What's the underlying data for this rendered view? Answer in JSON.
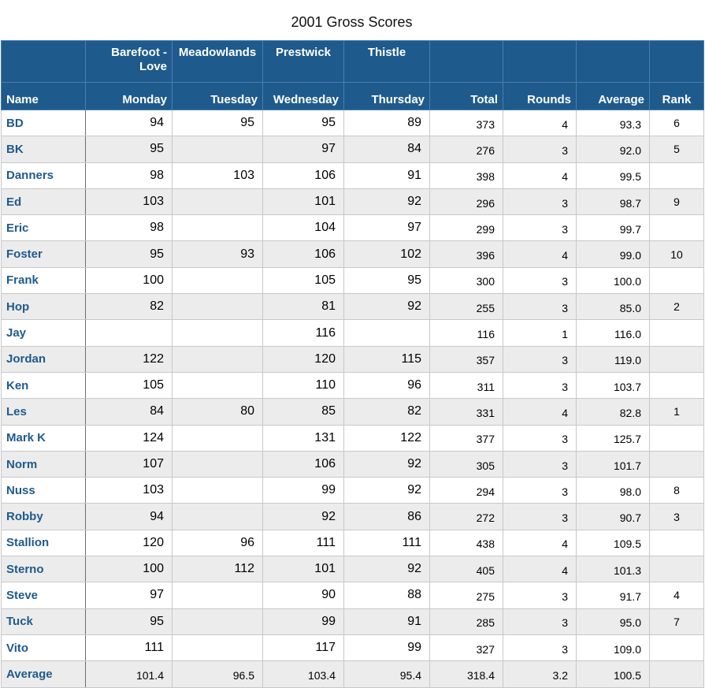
{
  "title": "2001 Gross Scores",
  "header_top": [
    "",
    "Barefoot - Love",
    "Meadowlands",
    "Prestwick",
    "Thistle",
    "",
    "",
    "",
    ""
  ],
  "header_bottom": [
    "Name",
    "Monday",
    "Tuesday",
    "Wednesday",
    "Thursday",
    "Total",
    "Rounds",
    "Average",
    "Rank"
  ],
  "rows": [
    [
      "BD",
      "94",
      "95",
      "95",
      "89",
      "373",
      "4",
      "93.3",
      "6"
    ],
    [
      "BK",
      "95",
      "",
      "97",
      "84",
      "276",
      "3",
      "92.0",
      "5"
    ],
    [
      "Danners",
      "98",
      "103",
      "106",
      "91",
      "398",
      "4",
      "99.5",
      ""
    ],
    [
      "Ed",
      "103",
      "",
      "101",
      "92",
      "296",
      "3",
      "98.7",
      "9"
    ],
    [
      "Eric",
      "98",
      "",
      "104",
      "97",
      "299",
      "3",
      "99.7",
      ""
    ],
    [
      "Foster",
      "95",
      "93",
      "106",
      "102",
      "396",
      "4",
      "99.0",
      "10"
    ],
    [
      "Frank",
      "100",
      "",
      "105",
      "95",
      "300",
      "3",
      "100.0",
      ""
    ],
    [
      "Hop",
      "82",
      "",
      "81",
      "92",
      "255",
      "3",
      "85.0",
      "2"
    ],
    [
      "Jay",
      "",
      "",
      "116",
      "",
      "116",
      "1",
      "116.0",
      ""
    ],
    [
      "Jordan",
      "122",
      "",
      "120",
      "115",
      "357",
      "3",
      "119.0",
      ""
    ],
    [
      "Ken",
      "105",
      "",
      "110",
      "96",
      "311",
      "3",
      "103.7",
      ""
    ],
    [
      "Les",
      "84",
      "80",
      "85",
      "82",
      "331",
      "4",
      "82.8",
      "1"
    ],
    [
      "Mark K",
      "124",
      "",
      "131",
      "122",
      "377",
      "3",
      "125.7",
      ""
    ],
    [
      "Norm",
      "107",
      "",
      "106",
      "92",
      "305",
      "3",
      "101.7",
      ""
    ],
    [
      "Nuss",
      "103",
      "",
      "99",
      "92",
      "294",
      "3",
      "98.0",
      "8"
    ],
    [
      "Robby",
      "94",
      "",
      "92",
      "86",
      "272",
      "3",
      "90.7",
      "3"
    ],
    [
      "Stallion",
      "120",
      "96",
      "111",
      "111",
      "438",
      "4",
      "109.5",
      ""
    ],
    [
      "Sterno",
      "100",
      "112",
      "101",
      "92",
      "405",
      "4",
      "101.3",
      ""
    ],
    [
      "Steve",
      "97",
      "",
      "90",
      "88",
      "275",
      "3",
      "91.7",
      "4"
    ],
    [
      "Tuck",
      "95",
      "",
      "99",
      "91",
      "285",
      "3",
      "95.0",
      "7"
    ],
    [
      "Vito",
      "111",
      "",
      "117",
      "99",
      "327",
      "3",
      "109.0",
      ""
    ]
  ],
  "average_row": [
    "Average",
    "101.4",
    "96.5",
    "103.4",
    "95.4",
    "318.4",
    "3.2",
    "100.5",
    ""
  ],
  "colors": {
    "header_bg": "#1f5a8c",
    "name_text": "#1f5a8c",
    "alt_row_bg": "#ececec"
  }
}
